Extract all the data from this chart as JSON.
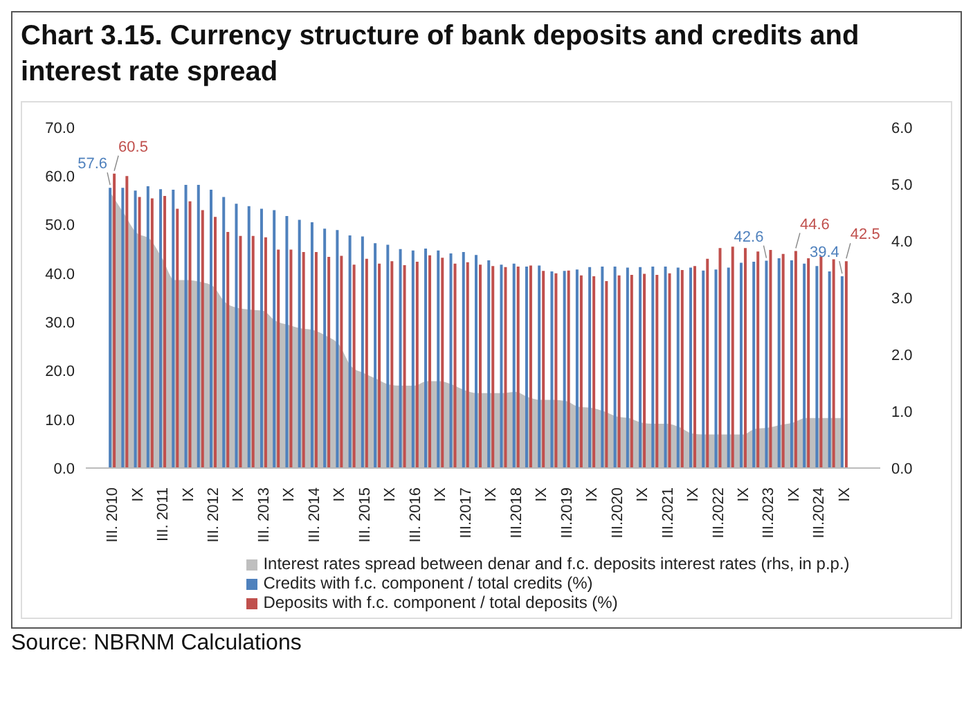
{
  "chart_data": {
    "type": "bar",
    "title": "Chart 3.15. Currency structure of bank deposits and credits and interest rate spread",
    "categories": [
      "III. 2010",
      null,
      "IX",
      null,
      "III. 2011",
      null,
      "IX",
      null,
      "III. 2012",
      null,
      "IX",
      null,
      "III. 2013",
      null,
      "IX",
      null,
      "III. 2014",
      null,
      "IX",
      null,
      "III. 2015",
      null,
      "IX",
      null,
      "III. 2016",
      null,
      "IX",
      null,
      "III.2017",
      null,
      "IX",
      null,
      "III.2018",
      null,
      "IX",
      null,
      "III.2019",
      null,
      "IX",
      null,
      "III.2020",
      null,
      "IX",
      null,
      "III.2021",
      null,
      "IX",
      null,
      "III.2022",
      null,
      "IX",
      null,
      "III.2023",
      null,
      "IX",
      null,
      "III.2024",
      null,
      "IX"
    ],
    "series": [
      {
        "name": "Interest rates spread between denar and f.c. deposits interest rates (rhs, in p.p.)",
        "type": "area",
        "axis": "y2",
        "color": "#bfbfbf",
        "values": [
          4.82,
          4.48,
          4.14,
          4.04,
          3.7,
          3.31,
          3.31,
          3.28,
          3.21,
          2.92,
          2.82,
          2.79,
          2.77,
          2.59,
          2.52,
          2.46,
          2.43,
          2.33,
          2.18,
          1.79,
          1.67,
          1.57,
          1.47,
          1.45,
          1.45,
          1.53,
          1.53,
          1.47,
          1.37,
          1.32,
          1.32,
          1.32,
          1.34,
          1.25,
          1.2,
          1.2,
          1.18,
          1.08,
          1.06,
          1.0,
          0.91,
          0.88,
          0.8,
          0.78,
          0.78,
          0.72,
          0.61,
          0.59,
          0.59,
          0.59,
          0.59,
          0.69,
          0.71,
          0.76,
          0.8,
          0.88,
          0.88,
          0.88,
          0.88
        ]
      },
      {
        "name": "Credits with f.c. component / total credits (%)",
        "color": "#4f81bd",
        "values": [
          57.6,
          57.6,
          57.0,
          57.9,
          57.3,
          57.2,
          58.2,
          58.2,
          57.2,
          55.7,
          54.3,
          53.8,
          53.3,
          53.0,
          51.8,
          51.0,
          50.5,
          49.2,
          48.9,
          47.8,
          47.6,
          46.2,
          45.9,
          45.0,
          44.7,
          45.1,
          44.7,
          44.1,
          44.4,
          43.8,
          42.7,
          41.8,
          42.0,
          41.4,
          41.6,
          40.4,
          40.5,
          40.8,
          41.3,
          41.4,
          41.4,
          41.2,
          41.3,
          41.4,
          41.4,
          41.2,
          41.2,
          40.6,
          40.8,
          41.2,
          42.2,
          42.4,
          42.6,
          43.1,
          42.7,
          42.0,
          41.5,
          40.4,
          39.4
        ],
        "value_labels": [
          "57.6",
          null,
          null,
          null,
          null,
          null,
          null,
          null,
          null,
          null,
          null,
          null,
          null,
          null,
          null,
          null,
          null,
          null,
          null,
          null,
          null,
          null,
          null,
          null,
          null,
          null,
          null,
          null,
          null,
          null,
          null,
          null,
          null,
          null,
          null,
          null,
          null,
          null,
          null,
          null,
          null,
          null,
          null,
          null,
          null,
          null,
          null,
          null,
          null,
          null,
          null,
          null,
          "42.6",
          null,
          null,
          null,
          null,
          null,
          "39.4"
        ]
      },
      {
        "name": "Deposits with f.c. component / total deposits (%)",
        "color": "#c0504d",
        "values": [
          60.5,
          60.0,
          55.7,
          55.4,
          55.9,
          53.3,
          54.8,
          53.0,
          51.6,
          48.5,
          47.7,
          47.7,
          47.4,
          44.9,
          44.9,
          44.4,
          44.4,
          43.4,
          43.6,
          41.8,
          43.0,
          42.0,
          42.5,
          41.7,
          42.4,
          43.7,
          43.2,
          42.0,
          42.3,
          41.8,
          41.5,
          41.3,
          41.4,
          41.6,
          40.5,
          40.0,
          40.6,
          39.6,
          39.4,
          38.4,
          39.6,
          39.7,
          39.9,
          39.7,
          40.0,
          40.7,
          41.5,
          43.0,
          45.2,
          45.5,
          45.2,
          44.5,
          44.8,
          44.0,
          44.6,
          43.1,
          43.5,
          42.9,
          42.5
        ],
        "value_labels": [
          "60.5",
          null,
          null,
          null,
          null,
          null,
          null,
          null,
          null,
          null,
          null,
          null,
          null,
          null,
          null,
          null,
          null,
          null,
          null,
          null,
          null,
          null,
          null,
          null,
          null,
          null,
          null,
          null,
          null,
          null,
          null,
          null,
          null,
          null,
          null,
          null,
          null,
          null,
          null,
          null,
          null,
          null,
          null,
          null,
          null,
          null,
          null,
          null,
          null,
          null,
          null,
          null,
          null,
          null,
          "44.6",
          null,
          null,
          null,
          "42.5"
        ]
      }
    ],
    "ylim": [
      0,
      70
    ],
    "yticks": [
      {
        "value": 0,
        "label": "0.0"
      },
      {
        "value": 10,
        "label": "10.0"
      },
      {
        "value": 20,
        "label": "20.0"
      },
      {
        "value": 30,
        "label": "30.0"
      },
      {
        "value": 40,
        "label": "40.0"
      },
      {
        "value": 50,
        "label": "50.0"
      },
      {
        "value": 60,
        "label": "60.0"
      },
      {
        "value": 70,
        "label": "70.0"
      }
    ],
    "y2lim": [
      0,
      6
    ],
    "y2ticks": [
      {
        "value": 0,
        "label": "0.0"
      },
      {
        "value": 1,
        "label": "1.0"
      },
      {
        "value": 2,
        "label": "2.0"
      },
      {
        "value": 3,
        "label": "3.0"
      },
      {
        "value": 4,
        "label": "4.0"
      },
      {
        "value": 5,
        "label": "5.0"
      },
      {
        "value": 6,
        "label": "6.0"
      }
    ],
    "grid": false,
    "legend": "bottom",
    "annotations": [
      "Source: NBRNM Calculations"
    ]
  }
}
